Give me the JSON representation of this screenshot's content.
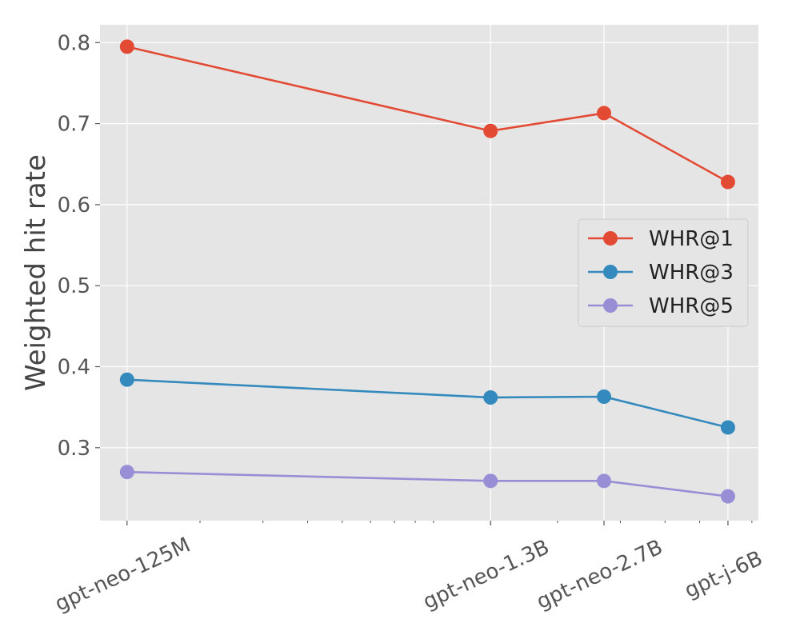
{
  "chart_data": {
    "type": "line",
    "title": "",
    "xlabel": "",
    "ylabel": "Weighted hit rate",
    "x_scale": "log",
    "categories": [
      "gpt-neo-125M",
      "gpt-neo-1.3B",
      "gpt-neo-2.7B",
      "gpt-j-6B"
    ],
    "x_values_billions": [
      0.125,
      1.3,
      2.7,
      6
    ],
    "ylim": [
      0.21,
      0.822
    ],
    "yticks": [
      "0.3",
      "0.4",
      "0.5",
      "0.6",
      "0.7",
      "0.8"
    ],
    "grid": true,
    "legend_position": "center-right",
    "series": [
      {
        "name": "WHR@1",
        "color": "#E24A33",
        "values": [
          0.795,
          0.691,
          0.713,
          0.628
        ]
      },
      {
        "name": "WHR@3",
        "color": "#348ABD",
        "values": [
          0.384,
          0.362,
          0.363,
          0.325
        ]
      },
      {
        "name": "WHR@5",
        "color": "#988ED5",
        "values": [
          0.27,
          0.259,
          0.259,
          0.24
        ]
      }
    ],
    "style": {
      "plot_background": "#E5E5E5",
      "grid_color": "#FFFFFF"
    }
  }
}
